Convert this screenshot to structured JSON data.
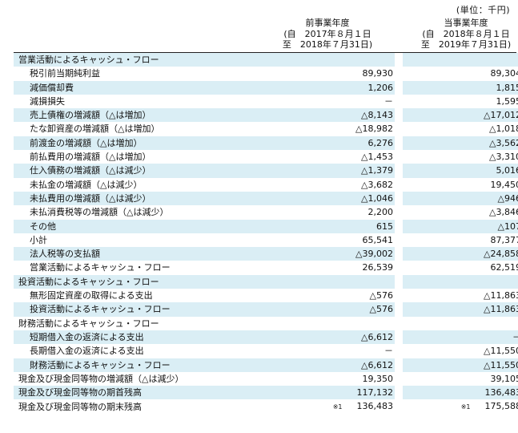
{
  "unit_label": "(単位：千円)",
  "columns": {
    "prev": {
      "title": "前事業年度",
      "from": "(自　2017年８月１日",
      "to": "至　2018年７月31日)"
    },
    "curr": {
      "title": "当事業年度",
      "from": "(自　2018年８月１日",
      "to": "至　2019年７月31日)"
    }
  },
  "rows": [
    {
      "label": "営業活動によるキャッシュ・フロー",
      "prev": "",
      "curr": ""
    },
    {
      "label": "税引前当期純利益",
      "prev": "89,930",
      "curr": "89,304"
    },
    {
      "label": "減価償却費",
      "prev": "1,206",
      "curr": "1,815"
    },
    {
      "label": "減損損失",
      "prev": "－",
      "curr": "1,595"
    },
    {
      "label": "売上債権の増減額（△は増加）",
      "prev": "△8,143",
      "curr": "△17,012"
    },
    {
      "label": "たな卸資産の増減額（△は増加）",
      "prev": "△18,982",
      "curr": "△1,018"
    },
    {
      "label": "前渡金の増減額（△は増加）",
      "prev": "6,276",
      "curr": "△3,562"
    },
    {
      "label": "前払費用の増減額（△は増加）",
      "prev": "△1,453",
      "curr": "△3,310"
    },
    {
      "label": "仕入債務の増減額（△は減少）",
      "prev": "△1,379",
      "curr": "5,016"
    },
    {
      "label": "未払金の増減額（△は減少）",
      "prev": "△3,682",
      "curr": "19,450"
    },
    {
      "label": "未払費用の増減額（△は減少）",
      "prev": "△1,046",
      "curr": "△946"
    },
    {
      "label": "未払消費税等の増減額（△は減少）",
      "prev": "2,200",
      "curr": "△3,846"
    },
    {
      "label": "その他",
      "prev": "615",
      "curr": "△107"
    },
    {
      "label": "小計",
      "prev": "65,541",
      "curr": "87,377"
    },
    {
      "label": "法人税等の支払額",
      "prev": "△39,002",
      "curr": "△24,858"
    },
    {
      "label": "営業活動によるキャッシュ・フロー",
      "prev": "26,539",
      "curr": "62,519"
    },
    {
      "label": "投資活動によるキャッシュ・フロー",
      "prev": "",
      "curr": ""
    },
    {
      "label": "無形固定資産の取得による支出",
      "prev": "△576",
      "curr": "△11,863"
    },
    {
      "label": "投資活動によるキャッシュ・フロー",
      "prev": "△576",
      "curr": "△11,863"
    },
    {
      "label": "財務活動によるキャッシュ・フロー",
      "prev": "",
      "curr": ""
    },
    {
      "label": "短期借入金の返済による支出",
      "prev": "△6,612",
      "curr": "－"
    },
    {
      "label": "長期借入金の返済による支出",
      "prev": "－",
      "curr": "△11,550"
    },
    {
      "label": "財務活動によるキャッシュ・フロー",
      "prev": "△6,612",
      "curr": "△11,550"
    },
    {
      "label": "現金及び現金同等物の増減額（△は減少）",
      "prev": "19,350",
      "curr": "39,105"
    },
    {
      "label": "現金及び現金同等物の期首残高",
      "prev": "117,132",
      "curr": "136,483"
    },
    {
      "label": "現金及び現金同等物の期末残高",
      "prev": "136,483",
      "curr": "175,588",
      "prev_note": "※1",
      "curr_note": "※1"
    }
  ],
  "colors": {
    "shade": "#daeef5"
  }
}
